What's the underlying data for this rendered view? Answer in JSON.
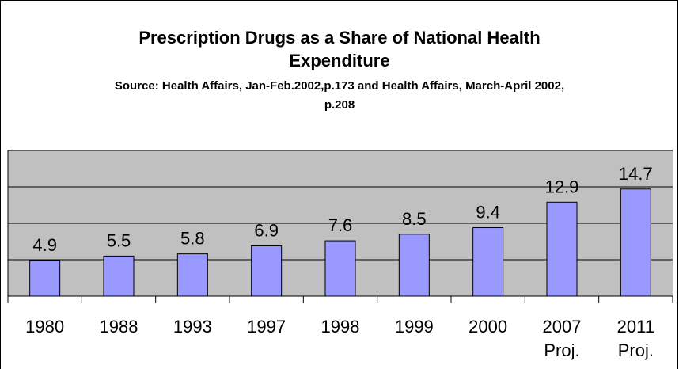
{
  "chart_data": {
    "type": "bar",
    "title": "Prescription Drugs as a Share of National Health Expenditure",
    "subtitle": "Source: Health Affairs, Jan-Feb.2002,p.173 and Health Affairs, March-April 2002, p.208",
    "categories": [
      "1980",
      "1988",
      "1993",
      "1997",
      "1998",
      "1999",
      "2000",
      "2007 Proj.",
      "2011 Proj."
    ],
    "values": [
      4.9,
      5.5,
      5.8,
      6.9,
      7.6,
      8.5,
      9.4,
      12.9,
      14.7
    ],
    "color": "#9999ff",
    "ylim": [
      0,
      20
    ],
    "yticks": [
      0,
      5,
      10,
      15,
      20
    ],
    "grid": true
  }
}
